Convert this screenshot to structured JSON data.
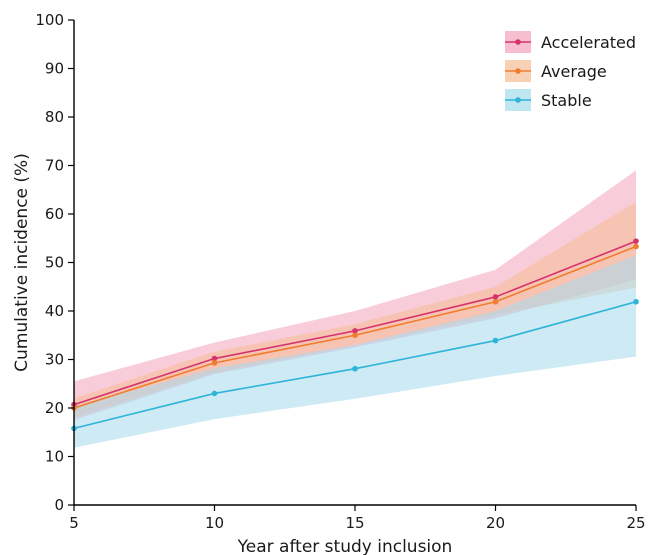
{
  "chart_data": {
    "type": "line",
    "title": "",
    "xlabel": "Year after study inclusion",
    "ylabel": "Cumulative incidence (%)",
    "x": [
      5,
      10,
      15,
      20,
      25
    ],
    "xlim": [
      5,
      25
    ],
    "ylim": [
      0,
      100
    ],
    "xticks": [
      5,
      10,
      15,
      20,
      25
    ],
    "yticks": [
      0,
      10,
      20,
      30,
      40,
      50,
      60,
      70,
      80,
      90,
      100
    ],
    "grid": false,
    "legend_position": "top-right",
    "series": [
      {
        "name": "Accelerated",
        "color": "#d6336c",
        "band_color": "#f4a3bc",
        "values": [
          20.7,
          30.2,
          35.9,
          42.9,
          54.4
        ],
        "lower": [
          17.5,
          27.0,
          32.5,
          38.5,
          46.5
        ],
        "upper": [
          25.5,
          33.5,
          40.0,
          48.5,
          69.0
        ]
      },
      {
        "name": "Average",
        "color": "#ef7d2e",
        "band_color": "#f5be96",
        "values": [
          20.0,
          29.3,
          35.0,
          41.9,
          53.3
        ],
        "lower": [
          18.0,
          27.3,
          33.0,
          39.2,
          44.8
        ],
        "upper": [
          22.0,
          31.6,
          37.3,
          45.0,
          62.5
        ]
      },
      {
        "name": "Stable",
        "color": "#2eb3d9",
        "band_color": "#a5dbed",
        "values": [
          15.8,
          23.0,
          28.1,
          33.9,
          41.9
        ],
        "lower": [
          11.8,
          17.7,
          21.9,
          26.6,
          30.6
        ],
        "upper": [
          20.2,
          28.2,
          33.0,
          40.0,
          51.5
        ]
      }
    ]
  }
}
